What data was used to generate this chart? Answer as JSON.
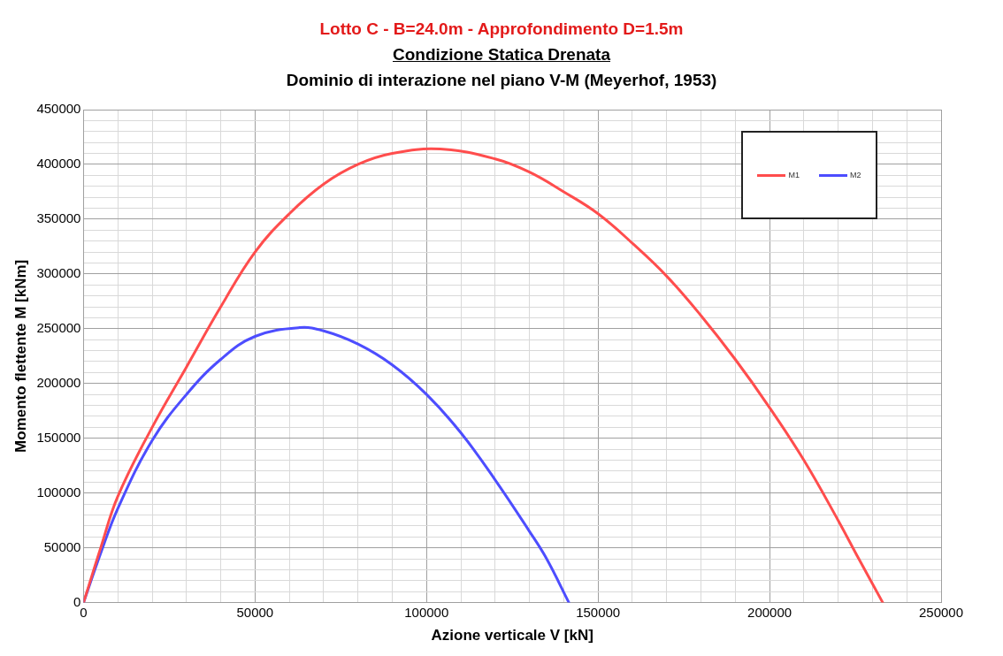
{
  "chart_data": {
    "type": "line",
    "title": "Lotto C - B=24.0m - Approfondimento D=1.5m",
    "subtitle": [
      "Condizione Statica Drenata",
      "Dominio di interazione nel piano V-M (Meyerhof, 1953)"
    ],
    "xlabel": "Azione verticale V [kN]",
    "ylabel": "Momento flettente M [kNm]",
    "series": [
      {
        "name": "M1",
        "color": "#ff4d4d",
        "x": [
          0,
          5000,
          10000,
          20000,
          30000,
          40000,
          50000,
          60000,
          70000,
          80000,
          90000,
          104000,
          120000,
          130000,
          140000,
          150000,
          160000,
          170000,
          180000,
          190000,
          200000,
          210000,
          220000,
          226000,
          233000
        ],
        "values": [
          0,
          50000,
          97000,
          160000,
          215000,
          270000,
          320000,
          355000,
          382000,
          400000,
          410000,
          414000,
          405000,
          393000,
          375000,
          355000,
          328000,
          298000,
          262000,
          222000,
          178000,
          130000,
          75000,
          40000,
          0
        ]
      },
      {
        "name": "M2",
        "color": "#4d4dff",
        "x": [
          0,
          5000,
          10000,
          20000,
          30000,
          40000,
          50000,
          63000,
          70000,
          80000,
          90000,
          100000,
          110000,
          120000,
          130000,
          135000,
          141500
        ],
        "values": [
          0,
          45000,
          86000,
          148000,
          190000,
          222000,
          243000,
          251000,
          248000,
          236000,
          217000,
          190000,
          155000,
          112000,
          65000,
          40000,
          0
        ]
      }
    ],
    "xlim": [
      0,
      250000
    ],
    "xticks": [
      0,
      {
        "value": 10000,
        "label": null
      },
      {
        "value": 20000,
        "label": null
      },
      {
        "value": 30000,
        "label": null
      },
      {
        "value": 40000,
        "label": null
      },
      50000,
      {
        "value": 60000,
        "label": null
      },
      {
        "value": 70000,
        "label": null
      },
      {
        "value": 80000,
        "label": null
      },
      {
        "value": 90000,
        "label": null
      },
      100000,
      {
        "value": 110000,
        "label": null
      },
      {
        "value": 120000,
        "label": null
      },
      {
        "value": 130000,
        "label": null
      },
      {
        "value": 140000,
        "label": null
      },
      150000,
      {
        "value": 160000,
        "label": null
      },
      {
        "value": 170000,
        "label": null
      },
      {
        "value": 180000,
        "label": null
      },
      {
        "value": 190000,
        "label": null
      },
      200000,
      {
        "value": 210000,
        "label": null
      },
      {
        "value": 220000,
        "label": null
      },
      {
        "value": 230000,
        "label": null
      },
      {
        "value": 240000,
        "label": null
      },
      250000
    ],
    "ylim": [
      0,
      450000
    ],
    "yticks": [
      0,
      {
        "value": 10000,
        "label": null
      },
      {
        "value": 20000,
        "label": null
      },
      {
        "value": 30000,
        "label": null
      },
      {
        "value": 40000,
        "label": null
      },
      50000,
      {
        "value": 60000,
        "label": null
      },
      {
        "value": 70000,
        "label": null
      },
      {
        "value": 80000,
        "label": null
      },
      {
        "value": 90000,
        "label": null
      },
      100000,
      {
        "value": 110000,
        "label": null
      },
      {
        "value": 120000,
        "label": null
      },
      {
        "value": 130000,
        "label": null
      },
      {
        "value": 140000,
        "label": null
      },
      150000,
      {
        "value": 160000,
        "label": null
      },
      {
        "value": 170000,
        "label": null
      },
      {
        "value": 180000,
        "label": null
      },
      {
        "value": 190000,
        "label": null
      },
      200000,
      {
        "value": 210000,
        "label": null
      },
      {
        "value": 220000,
        "label": null
      },
      {
        "value": 230000,
        "label": null
      },
      {
        "value": 240000,
        "label": null
      },
      250000,
      {
        "value": 260000,
        "label": null
      },
      {
        "value": 270000,
        "label": null
      },
      {
        "value": 280000,
        "label": null
      },
      {
        "value": 290000,
        "label": null
      },
      300000,
      {
        "value": 310000,
        "label": null
      },
      {
        "value": 320000,
        "label": null
      },
      {
        "value": 330000,
        "label": null
      },
      {
        "value": 340000,
        "label": null
      },
      350000,
      {
        "value": 360000,
        "label": null
      },
      {
        "value": 370000,
        "label": null
      },
      {
        "value": 380000,
        "label": null
      },
      {
        "value": 390000,
        "label": null
      },
      400000,
      {
        "value": 410000,
        "label": null
      },
      {
        "value": 420000,
        "label": null
      },
      {
        "value": 430000,
        "label": null
      },
      {
        "value": 440000,
        "label": null
      },
      450000
    ],
    "grid": true,
    "legend": "top right",
    "marker": "none",
    "line_style": "solid"
  }
}
